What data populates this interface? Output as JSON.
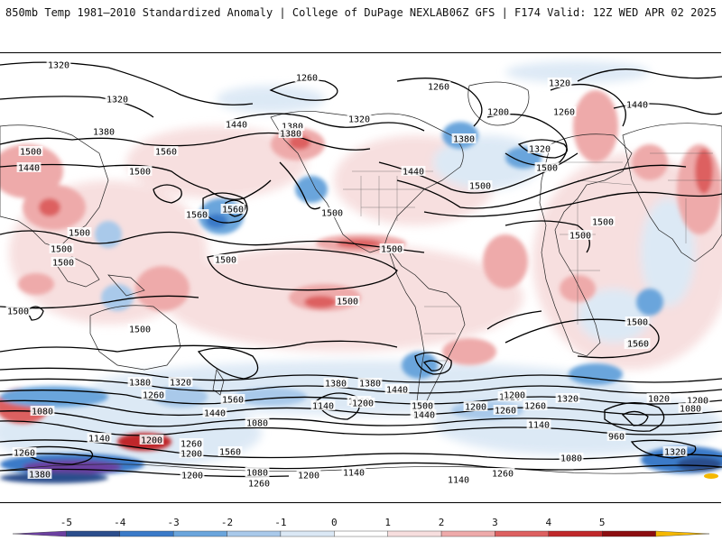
{
  "header": {
    "title_left": "850mb Temp 1981–2010 Standardized Anomaly | College of DuPage NEXLAB",
    "title_right": "06Z GFS | F174 Valid: 12Z WED APR 02 2025"
  },
  "colorbar": {
    "ticks": [
      "-5",
      "-4",
      "-3",
      "-2",
      "-1",
      "0",
      "1",
      "2",
      "3",
      "4",
      "5"
    ],
    "colors": [
      "#6b3fa0",
      "#2b4e8c",
      "#3a7ac8",
      "#6aa5dc",
      "#a9c9ea",
      "#dbe8f5",
      "#ffffff",
      "#f7dede",
      "#eeaaaa",
      "#dd6060",
      "#c0282a",
      "#8c0d10",
      "#f5b800"
    ]
  },
  "contours": {
    "labels": [
      {
        "text": "1320"
      },
      {
        "text": "1320"
      },
      {
        "text": "1260"
      },
      {
        "text": "1260"
      },
      {
        "text": "1320"
      },
      {
        "text": "1380"
      },
      {
        "text": "1440"
      },
      {
        "text": "1380"
      },
      {
        "text": "1320"
      },
      {
        "text": "1200"
      },
      {
        "text": "1260"
      },
      {
        "text": "1440"
      },
      {
        "text": "1380"
      },
      {
        "text": "1320"
      },
      {
        "text": "1560"
      },
      {
        "text": "1500"
      },
      {
        "text": "1440"
      },
      {
        "text": "1500"
      },
      {
        "text": "1440"
      },
      {
        "text": "1560"
      },
      {
        "text": "1500"
      },
      {
        "text": "1500"
      },
      {
        "text": "1380"
      },
      {
        "text": "1500"
      },
      {
        "text": "1560"
      },
      {
        "text": "1500"
      },
      {
        "text": "1500"
      },
      {
        "text": "1500"
      },
      {
        "text": "1500"
      },
      {
        "text": "1500"
      },
      {
        "text": "1500"
      },
      {
        "text": "1500"
      },
      {
        "text": "1500"
      },
      {
        "text": "1500"
      },
      {
        "text": "1500"
      },
      {
        "text": "1500"
      },
      {
        "text": "1500"
      },
      {
        "text": "1560"
      },
      {
        "text": "1380"
      },
      {
        "text": "1440"
      },
      {
        "text": "1560"
      },
      {
        "text": "1440"
      },
      {
        "text": "1380"
      },
      {
        "text": "1260"
      },
      {
        "text": "1320"
      },
      {
        "text": "1560"
      },
      {
        "text": "1440"
      },
      {
        "text": "1320"
      },
      {
        "text": "1380"
      },
      {
        "text": "1260"
      },
      {
        "text": "1200"
      },
      {
        "text": "1140"
      },
      {
        "text": "1500"
      },
      {
        "text": "1440"
      },
      {
        "text": "1200"
      },
      {
        "text": "1260"
      },
      {
        "text": "1320"
      },
      {
        "text": "1140"
      },
      {
        "text": "1020"
      },
      {
        "text": "1200"
      },
      {
        "text": "1080"
      },
      {
        "text": "1080"
      },
      {
        "text": "1140"
      },
      {
        "text": "1200"
      },
      {
        "text": "1260"
      },
      {
        "text": "1200"
      },
      {
        "text": "1080"
      },
      {
        "text": "1080"
      },
      {
        "text": "960"
      },
      {
        "text": "1320"
      },
      {
        "text": "1260"
      },
      {
        "text": "1380"
      },
      {
        "text": "1260"
      },
      {
        "text": "1200"
      },
      {
        "text": "1140"
      },
      {
        "text": "1200"
      },
      {
        "text": "1260"
      },
      {
        "text": "1080"
      },
      {
        "text": "1140"
      },
      {
        "text": "1200"
      },
      {
        "text": "1260"
      }
    ]
  }
}
